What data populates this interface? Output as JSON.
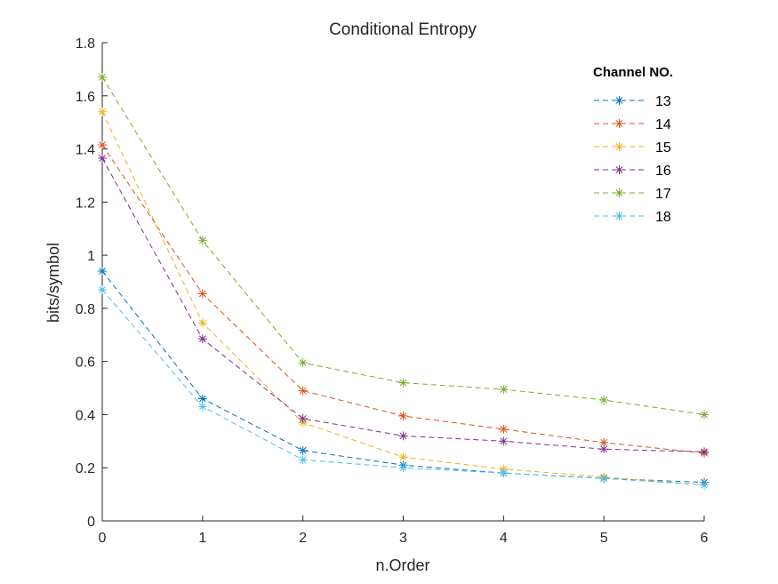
{
  "chart_data": {
    "type": "line",
    "title": "Conditional Entropy",
    "xlabel": "n.Order",
    "ylabel": "bits/symbol",
    "xlim": [
      0,
      6
    ],
    "ylim": [
      0,
      1.8
    ],
    "x": [
      0,
      1,
      2,
      3,
      4,
      5,
      6
    ],
    "xticks": [
      "0",
      "1",
      "2",
      "3",
      "4",
      "5",
      "6"
    ],
    "yticks": [
      "0",
      "0.2",
      "0.4",
      "0.6",
      "0.8",
      "1",
      "1.2",
      "1.4",
      "1.6",
      "1.8"
    ],
    "grid": false,
    "legend": {
      "title": "Channel NO.",
      "position": "top-right"
    },
    "series": [
      {
        "name": "13",
        "color": "#0072BD",
        "values": [
          0.94,
          0.46,
          0.265,
          0.21,
          0.18,
          0.16,
          0.145
        ]
      },
      {
        "name": "14",
        "color": "#D95319",
        "values": [
          1.415,
          0.855,
          0.49,
          0.395,
          0.345,
          0.295,
          0.255
        ]
      },
      {
        "name": "15",
        "color": "#EDB120",
        "values": [
          1.54,
          0.745,
          0.37,
          0.24,
          0.195,
          0.165,
          0.135
        ]
      },
      {
        "name": "16",
        "color": "#7E2F8E",
        "values": [
          1.365,
          0.685,
          0.385,
          0.32,
          0.3,
          0.27,
          0.26
        ]
      },
      {
        "name": "17",
        "color": "#77AC30",
        "values": [
          1.67,
          1.055,
          0.595,
          0.52,
          0.495,
          0.455,
          0.4
        ]
      },
      {
        "name": "18",
        "color": "#4DBEEE",
        "values": [
          0.87,
          0.43,
          0.23,
          0.2,
          0.18,
          0.16,
          0.135
        ]
      }
    ]
  }
}
